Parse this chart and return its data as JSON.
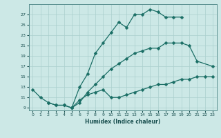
{
  "xlabel": "Humidex (Indice chaleur)",
  "bg_color": "#cce8e6",
  "grid_color": "#aacfcd",
  "line_color": "#1a6e65",
  "line1_x": [
    0,
    1,
    2,
    3,
    4,
    5,
    6,
    7,
    8,
    9,
    10,
    11,
    12,
    13,
    14,
    15,
    16,
    17,
    18,
    19
  ],
  "line1_y": [
    12.5,
    11.0,
    10.0,
    9.5,
    9.5,
    9.0,
    13.0,
    15.5,
    19.5,
    21.5,
    23.5,
    25.5,
    24.5,
    27.0,
    27.0,
    28.0,
    27.5,
    26.5,
    26.5,
    26.5
  ],
  "line2_x": [
    5,
    6,
    7,
    8,
    9,
    10,
    11,
    12,
    13,
    14,
    15,
    16,
    17,
    18,
    19,
    20,
    21,
    23
  ],
  "line2_y": [
    9.0,
    10.0,
    12.0,
    13.5,
    15.0,
    16.5,
    17.5,
    18.5,
    19.5,
    20.0,
    20.5,
    20.5,
    21.5,
    21.5,
    21.5,
    21.0,
    18.0,
    17.0
  ],
  "line3_x": [
    2,
    3,
    4,
    5,
    6,
    7,
    8,
    9,
    10,
    11,
    12,
    13,
    14,
    15,
    16,
    17,
    18,
    19,
    20,
    21,
    22,
    23
  ],
  "line3_y": [
    10.0,
    9.5,
    9.5,
    9.0,
    10.5,
    11.5,
    12.0,
    12.5,
    11.0,
    11.0,
    11.5,
    12.0,
    12.5,
    13.0,
    13.5,
    13.5,
    14.0,
    14.5,
    14.5,
    15.0,
    15.0,
    15.0
  ],
  "ylim": [
    8.5,
    29.0
  ],
  "xlim": [
    -0.5,
    23.5
  ],
  "yticks": [
    9,
    11,
    13,
    15,
    17,
    19,
    21,
    23,
    25,
    27
  ],
  "xticks": [
    0,
    1,
    2,
    3,
    4,
    5,
    6,
    7,
    8,
    9,
    10,
    11,
    12,
    13,
    14,
    15,
    16,
    17,
    18,
    19,
    20,
    21,
    22,
    23
  ]
}
